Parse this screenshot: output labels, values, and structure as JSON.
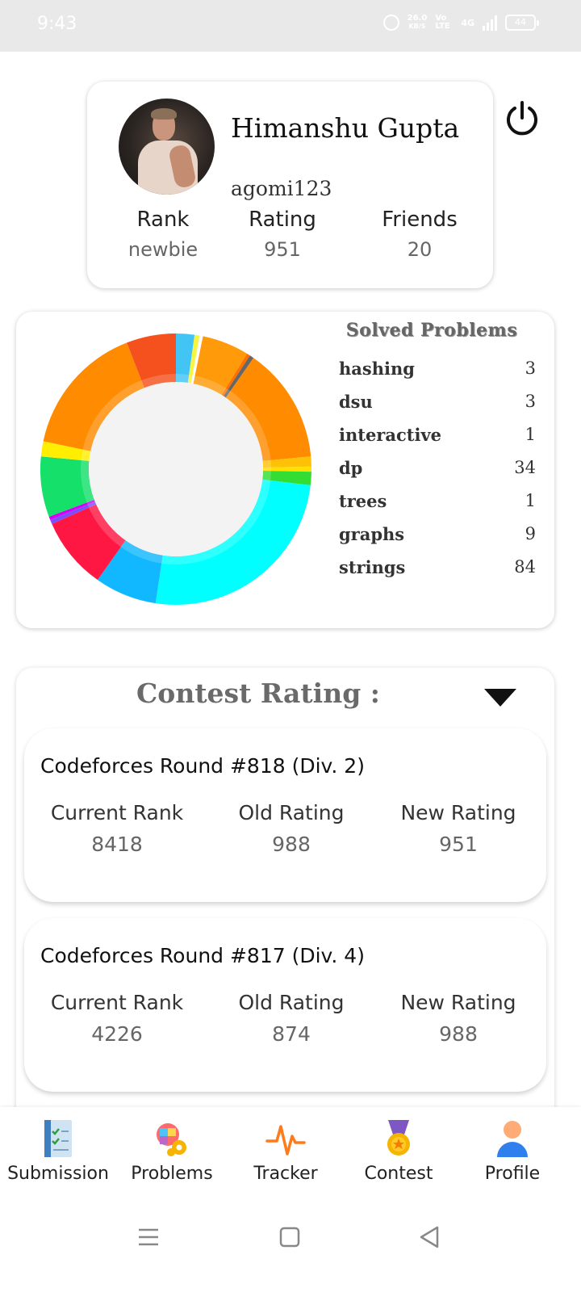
{
  "status_bar": {
    "time": "9:43",
    "net_speed_value": "26.0",
    "net_speed_unit": "KB/S",
    "volte": "Vo LTE",
    "network": "4G",
    "battery": "44"
  },
  "profile": {
    "name": "Himanshu Gupta",
    "handle": "agomi123",
    "stats": [
      {
        "label": "Rank",
        "value": "newbie"
      },
      {
        "label": "Rating",
        "value": "951"
      },
      {
        "label": "Friends",
        "value": "20"
      }
    ]
  },
  "solved": {
    "title": "Solved Problems",
    "tags": [
      {
        "name": "hashing",
        "count": "3"
      },
      {
        "name": "dsu",
        "count": "3"
      },
      {
        "name": "interactive",
        "count": "1"
      },
      {
        "name": "dp",
        "count": "34"
      },
      {
        "name": "trees",
        "count": "1"
      },
      {
        "name": "graphs",
        "count": "9"
      },
      {
        "name": "strings",
        "count": "84"
      }
    ]
  },
  "chart_data": {
    "type": "pie",
    "style": "donut",
    "slices": [
      {
        "value": 2.2,
        "color": "#42c5f5"
      },
      {
        "value": 0.6,
        "color": "#f5f542"
      },
      {
        "value": 0.4,
        "color": "#ffffff"
      },
      {
        "value": 5.6,
        "color": "#ff9a0a"
      },
      {
        "value": 0.4,
        "color": "#ff6f00"
      },
      {
        "value": 0.5,
        "color": "#666666"
      },
      {
        "value": 13.8,
        "color": "#ff8c00"
      },
      {
        "value": 1.2,
        "color": "#ffc107"
      },
      {
        "value": 0.6,
        "color": "#ffe000"
      },
      {
        "value": 1.6,
        "color": "#33dd33"
      },
      {
        "value": 25.5,
        "color": "#00ffff"
      },
      {
        "value": 7.4,
        "color": "#12b8ff"
      },
      {
        "value": 8.6,
        "color": "#ff1744"
      },
      {
        "value": 0.5,
        "color": "#7c4dff"
      },
      {
        "value": 0.4,
        "color": "#d500f9"
      },
      {
        "value": 7.2,
        "color": "#14e06a"
      },
      {
        "value": 1.8,
        "color": "#ffee00"
      },
      {
        "value": 15.8,
        "color": "#ff8c00"
      },
      {
        "value": 5.9,
        "color": "#f4511e"
      }
    ],
    "center_color": "#f3f3f3"
  },
  "contest": {
    "heading": "Contest Rating :",
    "cards": [
      {
        "name": "Codeforces Round #818 (Div. 2)",
        "stats": [
          {
            "label": "Current Rank",
            "value": "8418"
          },
          {
            "label": "Old Rating",
            "value": "988"
          },
          {
            "label": "New Rating",
            "value": "951"
          }
        ]
      },
      {
        "name": "Codeforces Round #817 (Div. 4)",
        "stats": [
          {
            "label": "Current Rank",
            "value": "4226"
          },
          {
            "label": "Old Rating",
            "value": "874"
          },
          {
            "label": "New Rating",
            "value": "988"
          }
        ]
      }
    ]
  },
  "nav": {
    "items": [
      {
        "label": "Submission",
        "icon": "clipboard-check-icon"
      },
      {
        "label": "Problems",
        "icon": "puzzle-gear-icon"
      },
      {
        "label": "Tracker",
        "icon": "pulse-icon"
      },
      {
        "label": "Contest",
        "icon": "medal-icon"
      },
      {
        "label": "Profile",
        "icon": "person-icon"
      }
    ]
  }
}
